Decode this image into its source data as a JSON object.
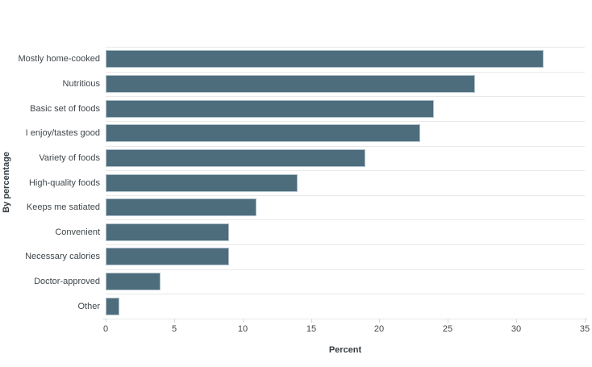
{
  "chart_data": {
    "type": "bar",
    "orientation": "horizontal",
    "title": "",
    "xlabel": "Percent",
    "ylabel": "By percentage",
    "categories": [
      "Mostly home-cooked",
      "Nutritious",
      "Basic set of foods",
      "I enjoy/tastes good",
      "Variety of foods",
      "High-quality foods",
      "Keeps me satiated",
      "Convenient",
      "Necessary calories",
      "Doctor-approved",
      "Other"
    ],
    "values": [
      32,
      27,
      24,
      23,
      19,
      14,
      11,
      9,
      9,
      4,
      1
    ],
    "xlim": [
      0,
      35
    ],
    "xticks": [
      0,
      5,
      10,
      15,
      20,
      25,
      30,
      35
    ],
    "grid": "horizontal-row-separators",
    "legend": "none"
  },
  "colors": {
    "bar_fill": "#4d6c7c",
    "bar_border": "#b3c3cc",
    "gridline": "#e9e9e9",
    "axis_line": "#d8d8d8",
    "label_text": "#3f464b",
    "title_text": "#363c40",
    "background": "#ffffff"
  }
}
